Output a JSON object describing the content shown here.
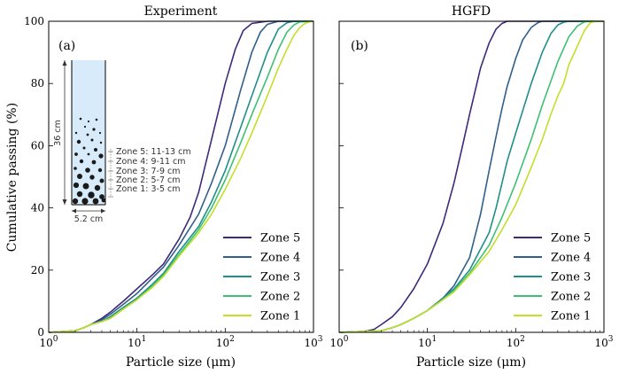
{
  "colors": {
    "zone5": "#3f2a7a",
    "zone4": "#2f5f8a",
    "zone3": "#1f8f8a",
    "zone2": "#3fbf74",
    "zone1": "#c2df2a",
    "column_fill": "#d8ebfa",
    "particle": "#1a1a1a"
  },
  "chart_data": [
    {
      "type": "line",
      "title": "Experiment",
      "panel_label": "(a)",
      "xlabel": "Particle size (μm)",
      "ylabel": "Cumulative passing (%)",
      "xscale": "log",
      "xlim": [
        1,
        1000
      ],
      "ylim": [
        0,
        100
      ],
      "x_ticks": [
        {
          "value": 1,
          "base": "10",
          "exp": "0"
        },
        {
          "value": 10,
          "base": "10",
          "exp": "1"
        },
        {
          "value": 100,
          "base": "10",
          "exp": "2"
        },
        {
          "value": 1000,
          "base": "10",
          "exp": "3"
        }
      ],
      "y_ticks": [
        0,
        20,
        40,
        60,
        80,
        100
      ],
      "grid": false,
      "legend_position": "lower-right",
      "series": [
        {
          "name": "Zone 5",
          "color_key": "zone5",
          "points": [
            [
              1,
              0
            ],
            [
              2,
              0.5
            ],
            [
              2.5,
              1.5
            ],
            [
              3,
              2.5
            ],
            [
              4,
              4.5
            ],
            [
              5,
              6.5
            ],
            [
              7,
              10
            ],
            [
              10,
              14
            ],
            [
              15,
              18.5
            ],
            [
              20,
              22
            ],
            [
              30,
              30
            ],
            [
              40,
              37
            ],
            [
              50,
              45
            ],
            [
              70,
              62
            ],
            [
              100,
              80
            ],
            [
              130,
              91
            ],
            [
              160,
              97
            ],
            [
              200,
              99.3
            ],
            [
              300,
              100
            ],
            [
              1000,
              100
            ]
          ]
        },
        {
          "name": "Zone 4",
          "color_key": "zone4",
          "points": [
            [
              1,
              0
            ],
            [
              2,
              0.5
            ],
            [
              2.5,
              1.5
            ],
            [
              3,
              2.5
            ],
            [
              4,
              4
            ],
            [
              5,
              5.8
            ],
            [
              7,
              9
            ],
            [
              10,
              12.5
            ],
            [
              15,
              17.5
            ],
            [
              20,
              21
            ],
            [
              30,
              28
            ],
            [
              50,
              38
            ],
            [
              70,
              48
            ],
            [
              100,
              60
            ],
            [
              150,
              78
            ],
            [
              200,
              90
            ],
            [
              250,
              96.5
            ],
            [
              300,
              99
            ],
            [
              400,
              100
            ],
            [
              1000,
              100
            ]
          ]
        },
        {
          "name": "Zone 3",
          "color_key": "zone3",
          "points": [
            [
              1,
              0
            ],
            [
              2,
              0.5
            ],
            [
              2.5,
              1.5
            ],
            [
              3,
              2.5
            ],
            [
              4,
              3.5
            ],
            [
              5,
              5
            ],
            [
              7,
              8
            ],
            [
              10,
              11
            ],
            [
              15,
              15.5
            ],
            [
              20,
              19
            ],
            [
              30,
              26
            ],
            [
              50,
              34
            ],
            [
              70,
              42
            ],
            [
              100,
              52
            ],
            [
              150,
              66
            ],
            [
              200,
              76
            ],
            [
              300,
              90
            ],
            [
              400,
              97.5
            ],
            [
              500,
              99.5
            ],
            [
              600,
              100
            ],
            [
              1000,
              100
            ]
          ]
        },
        {
          "name": "Zone 2",
          "color_key": "zone2",
          "points": [
            [
              1,
              0
            ],
            [
              2,
              0.5
            ],
            [
              2.5,
              1.5
            ],
            [
              3,
              2.5
            ],
            [
              4,
              3.5
            ],
            [
              5,
              4.5
            ],
            [
              7,
              7.5
            ],
            [
              10,
              10.5
            ],
            [
              15,
              15
            ],
            [
              20,
              18.5
            ],
            [
              30,
              25
            ],
            [
              50,
              33
            ],
            [
              70,
              40
            ],
            [
              100,
              49
            ],
            [
              150,
              61
            ],
            [
              200,
              70
            ],
            [
              300,
              82
            ],
            [
              400,
              91
            ],
            [
              500,
              96.5
            ],
            [
              600,
              98.8
            ],
            [
              700,
              99.8
            ],
            [
              1000,
              100
            ]
          ]
        },
        {
          "name": "Zone 1",
          "color_key": "zone1",
          "points": [
            [
              1,
              0
            ],
            [
              2,
              0.5
            ],
            [
              2.5,
              1.5
            ],
            [
              3,
              2.5
            ],
            [
              4,
              3.5
            ],
            [
              5,
              4.5
            ],
            [
              7,
              7.5
            ],
            [
              10,
              10.5
            ],
            [
              15,
              14.5
            ],
            [
              20,
              18
            ],
            [
              30,
              24.5
            ],
            [
              50,
              32
            ],
            [
              70,
              38
            ],
            [
              100,
              46
            ],
            [
              150,
              56
            ],
            [
              200,
              64
            ],
            [
              300,
              76
            ],
            [
              400,
              85
            ],
            [
              500,
              91
            ],
            [
              600,
              95.5
            ],
            [
              700,
              98
            ],
            [
              800,
              99.3
            ],
            [
              900,
              99.8
            ],
            [
              1000,
              100
            ]
          ]
        }
      ]
    },
    {
      "type": "line",
      "title": "HGFD",
      "panel_label": "(b)",
      "xlabel": "Particle size (μm)",
      "ylabel": "",
      "xscale": "log",
      "xlim": [
        1,
        1000
      ],
      "ylim": [
        0,
        100
      ],
      "x_ticks": [
        {
          "value": 1,
          "base": "10",
          "exp": "0"
        },
        {
          "value": 10,
          "base": "10",
          "exp": "1"
        },
        {
          "value": 100,
          "base": "10",
          "exp": "2"
        },
        {
          "value": 1000,
          "base": "10",
          "exp": "3"
        }
      ],
      "y_ticks": [
        0,
        20,
        40,
        60,
        80,
        100
      ],
      "grid": false,
      "legend_position": "lower-right",
      "series": [
        {
          "name": "Zone 5",
          "color_key": "zone5",
          "points": [
            [
              1,
              0
            ],
            [
              2,
              0.3
            ],
            [
              2.5,
              1
            ],
            [
              3,
              2.5
            ],
            [
              4,
              5
            ],
            [
              5,
              8
            ],
            [
              7,
              14
            ],
            [
              10,
              22
            ],
            [
              15,
              35
            ],
            [
              20,
              48
            ],
            [
              25,
              60
            ],
            [
              30,
              70
            ],
            [
              40,
              85
            ],
            [
              50,
              93
            ],
            [
              60,
              97.5
            ],
            [
              70,
              99.3
            ],
            [
              80,
              100
            ],
            [
              1000,
              100
            ]
          ]
        },
        {
          "name": "Zone 4",
          "color_key": "zone4",
          "points": [
            [
              1,
              0
            ],
            [
              3,
              0.5
            ],
            [
              4,
              1.5
            ],
            [
              5,
              2.5
            ],
            [
              7,
              4.5
            ],
            [
              10,
              7
            ],
            [
              15,
              11
            ],
            [
              20,
              15
            ],
            [
              30,
              24
            ],
            [
              40,
              38
            ],
            [
              50,
              52
            ],
            [
              60,
              63
            ],
            [
              70,
              72
            ],
            [
              80,
              79
            ],
            [
              100,
              88
            ],
            [
              120,
              94
            ],
            [
              150,
              98
            ],
            [
              180,
              99.6
            ],
            [
              200,
              100
            ],
            [
              1000,
              100
            ]
          ]
        },
        {
          "name": "Zone 3",
          "color_key": "zone3",
          "points": [
            [
              1,
              0
            ],
            [
              3,
              0.5
            ],
            [
              4,
              1.5
            ],
            [
              5,
              2.5
            ],
            [
              7,
              4.5
            ],
            [
              10,
              7
            ],
            [
              15,
              11
            ],
            [
              20,
              14
            ],
            [
              30,
              20
            ],
            [
              50,
              32
            ],
            [
              60,
              40
            ],
            [
              70,
              48
            ],
            [
              80,
              55
            ],
            [
              100,
              64
            ],
            [
              150,
              80
            ],
            [
              200,
              90
            ],
            [
              250,
              96
            ],
            [
              300,
              98.8
            ],
            [
              350,
              99.7
            ],
            [
              400,
              100
            ],
            [
              1000,
              100
            ]
          ]
        },
        {
          "name": "Zone 2",
          "color_key": "zone2",
          "points": [
            [
              1,
              0
            ],
            [
              3,
              0.5
            ],
            [
              4,
              1.5
            ],
            [
              5,
              2.5
            ],
            [
              7,
              4.5
            ],
            [
              10,
              7
            ],
            [
              15,
              10.5
            ],
            [
              20,
              13.5
            ],
            [
              30,
              19
            ],
            [
              50,
              28
            ],
            [
              70,
              37
            ],
            [
              100,
              48
            ],
            [
              150,
              62
            ],
            [
              200,
              73
            ],
            [
              300,
              87
            ],
            [
              400,
              95
            ],
            [
              500,
              98.5
            ],
            [
              600,
              99.8
            ],
            [
              700,
              100
            ],
            [
              1000,
              100
            ]
          ]
        },
        {
          "name": "Zone 1",
          "color_key": "zone1",
          "points": [
            [
              1,
              0
            ],
            [
              3,
              0.5
            ],
            [
              4,
              1.5
            ],
            [
              5,
              2.5
            ],
            [
              7,
              4.5
            ],
            [
              10,
              7
            ],
            [
              15,
              10.5
            ],
            [
              20,
              13
            ],
            [
              30,
              18.5
            ],
            [
              50,
              26
            ],
            [
              70,
              33
            ],
            [
              100,
              41
            ],
            [
              150,
              53
            ],
            [
              200,
              62
            ],
            [
              250,
              70
            ],
            [
              300,
              76
            ],
            [
              350,
              80
            ],
            [
              400,
              86
            ],
            [
              500,
              92
            ],
            [
              600,
              97
            ],
            [
              700,
              99.5
            ],
            [
              800,
              100
            ],
            [
              1000,
              100
            ]
          ]
        }
      ]
    }
  ],
  "inset": {
    "height_label": "36 cm",
    "width_label": "5.2 cm",
    "zones": [
      "Zone 5: 11-13 cm",
      "Zone 4: 9-11 cm",
      "Zone 3: 7-9 cm",
      "Zone 2: 5-7 cm",
      "Zone 1: 3-5 cm"
    ]
  }
}
